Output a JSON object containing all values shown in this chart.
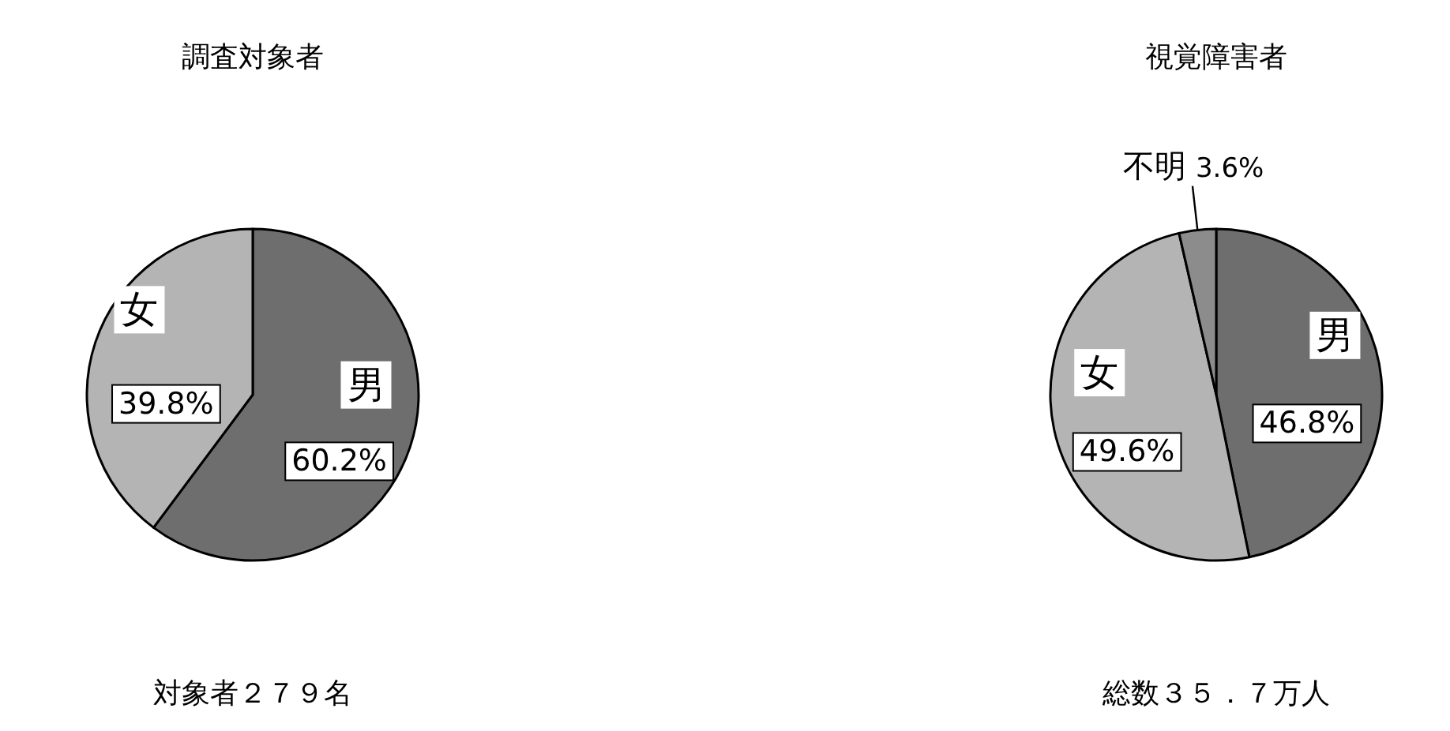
{
  "chart_data": [
    {
      "type": "pie",
      "title": "調査対象者",
      "categories": [
        "男",
        "女"
      ],
      "values": [
        60.2,
        39.8
      ],
      "value_labels": [
        "60.2%",
        "39.8%"
      ],
      "colors": [
        "#6e6e6e",
        "#b4b4b4"
      ],
      "annotations": [
        "対象者２７９名"
      ]
    },
    {
      "type": "pie",
      "title": "視覚障害者",
      "categories": [
        "男",
        "女",
        "不明"
      ],
      "values": [
        46.8,
        49.6,
        3.6
      ],
      "value_labels": [
        "46.8%",
        "49.6%",
        "3.6%"
      ],
      "colors": [
        "#6e6e6e",
        "#b4b4b4",
        "#8c8c8c"
      ],
      "annotations": [
        "総数３５．７万人"
      ]
    }
  ]
}
